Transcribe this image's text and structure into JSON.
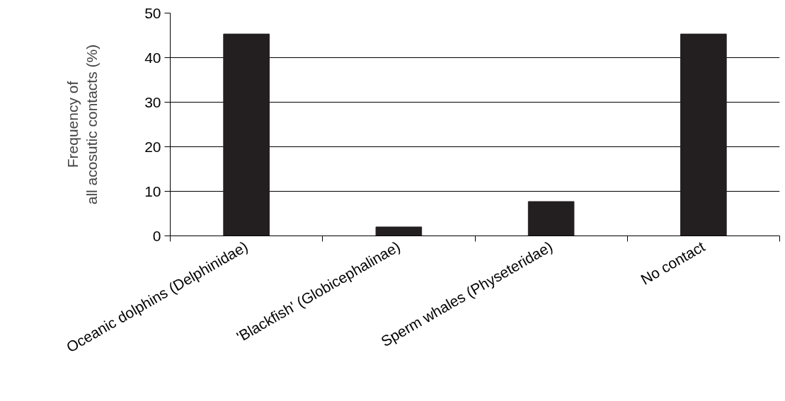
{
  "chart_data": {
    "type": "bar",
    "ylabel": "Frequency of\nall acosutic contacts (%)",
    "categories": [
      "Oceanic dolphins (Delphinidae)",
      "'Blackfish' (Globicephalinae)",
      "Sperm whales (Physeteridae)",
      "No contact"
    ],
    "values": [
      45.3,
      2,
      7.7,
      45.3
    ],
    "color": "#231f20",
    "ylim": [
      0,
      50
    ],
    "yticks": [
      0,
      10,
      20,
      30,
      40,
      50
    ],
    "grid": "y"
  }
}
